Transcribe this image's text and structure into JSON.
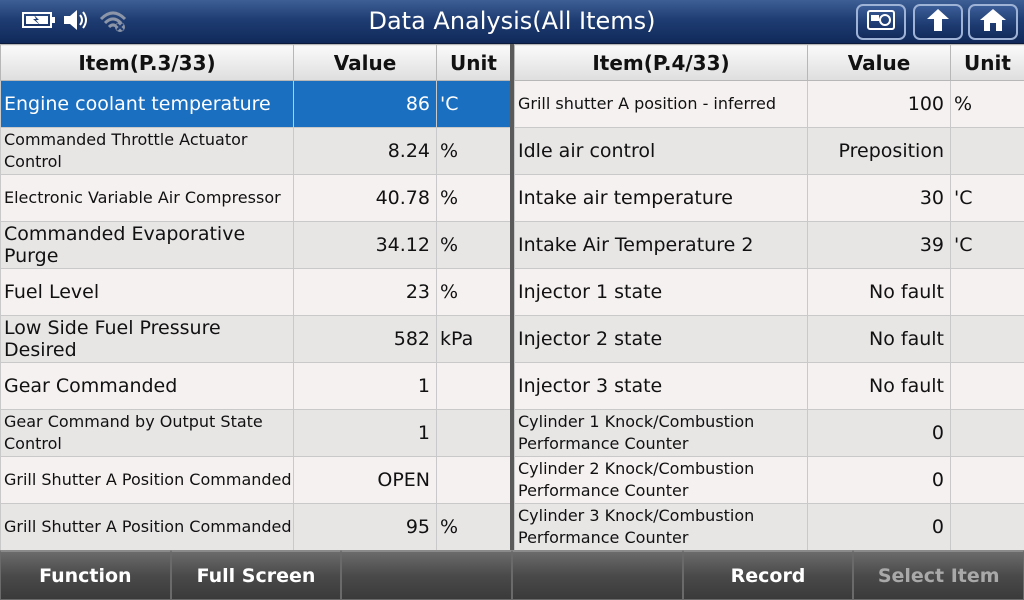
{
  "header": {
    "title": "Data Analysis(All Items)",
    "icons": [
      "battery-icon",
      "volume-icon",
      "wifi-icon"
    ]
  },
  "left_table": {
    "columns": [
      "Item(P.3/33)",
      "Value",
      "Unit"
    ],
    "rows": [
      {
        "item": "Engine coolant temperature",
        "value": "86",
        "unit": "'C"
      },
      {
        "item": "Commanded Throttle Actuator Control",
        "value": "8.24",
        "unit": "%"
      },
      {
        "item": "Electronic Variable Air Compressor",
        "value": "40.78",
        "unit": "%"
      },
      {
        "item": "Commanded Evaporative Purge",
        "value": "34.12",
        "unit": "%"
      },
      {
        "item": "Fuel Level",
        "value": "23",
        "unit": "%"
      },
      {
        "item": "Low Side Fuel Pressure Desired",
        "value": "582",
        "unit": "kPa"
      },
      {
        "item": "Gear Commanded",
        "value": "1",
        "unit": ""
      },
      {
        "item": "Gear Command by Output State Control",
        "value": "1",
        "unit": ""
      },
      {
        "item": "Grill Shutter A Position Commanded",
        "value": "OPEN",
        "unit": ""
      },
      {
        "item": "Grill Shutter A Position Commanded",
        "value": "95",
        "unit": "%"
      }
    ]
  },
  "right_table": {
    "columns": [
      "Item(P.4/33)",
      "Value",
      "Unit"
    ],
    "rows": [
      {
        "item": "Grill shutter A position - inferred",
        "value": "100",
        "unit": "%"
      },
      {
        "item": "Idle air control",
        "value": "Preposition",
        "unit": ""
      },
      {
        "item": "Intake air temperature",
        "value": "30",
        "unit": "'C"
      },
      {
        "item": "Intake Air Temperature 2",
        "value": "39",
        "unit": "'C"
      },
      {
        "item": "Injector 1 state",
        "value": "No fault",
        "unit": ""
      },
      {
        "item": "Injector 2 state",
        "value": "No fault",
        "unit": ""
      },
      {
        "item": "Injector 3 state",
        "value": "No fault",
        "unit": ""
      },
      {
        "item": "Cylinder 1 Knock/Combustion Performance Counter",
        "value": "0",
        "unit": ""
      },
      {
        "item": "Cylinder 2 Knock/Combustion Performance Counter",
        "value": "0",
        "unit": ""
      },
      {
        "item": "Cylinder 3 Knock/Combustion Performance Counter",
        "value": "0",
        "unit": ""
      }
    ]
  },
  "footer": {
    "buttons": [
      "Function",
      "Full Screen",
      "",
      "",
      "Record",
      "Select Item"
    ]
  },
  "colors": {
    "selected_row": "#1a6fc1",
    "title_bar": "#1f3d73"
  }
}
